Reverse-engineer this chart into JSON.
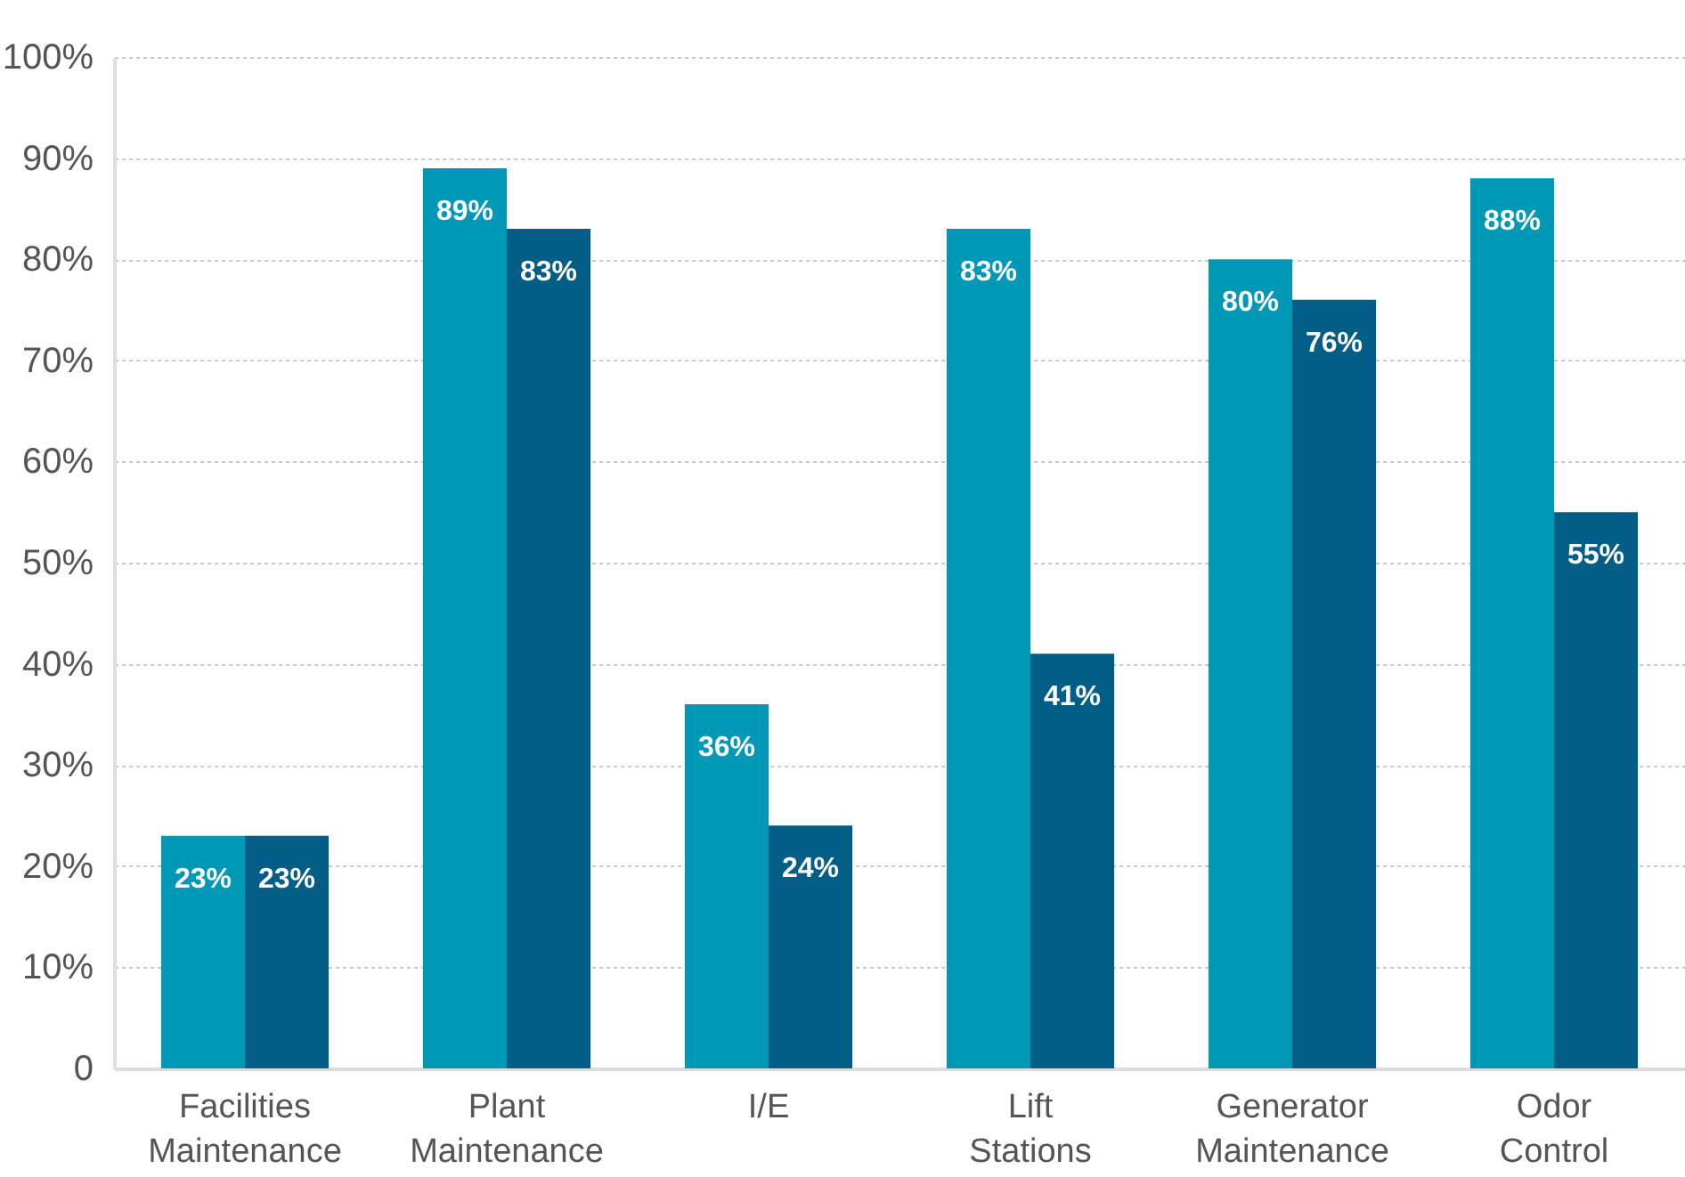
{
  "chart_data": {
    "type": "bar",
    "categories": [
      "Facilities Maintenance",
      "Plant Maintenance",
      "I/E",
      "Lift Stations",
      "Generator Maintenance",
      "Odor Control"
    ],
    "series": [
      {
        "color": "#0098b7",
        "values": [
          23,
          89,
          36,
          83,
          80,
          88
        ],
        "value_labels": [
          "23%",
          "89%",
          "36%",
          "83%",
          "80%",
          "88%"
        ]
      },
      {
        "color": "#035e87",
        "values": [
          23,
          83,
          24,
          41,
          76,
          55
        ],
        "value_labels": [
          "23%",
          "83%",
          "24%",
          "41%",
          "76%",
          "55%"
        ]
      }
    ],
    "ylim": [
      0,
      100
    ],
    "yticks": [
      0,
      {
        "value": 10,
        "label": "10%"
      },
      {
        "value": 20,
        "label": "20%"
      },
      {
        "value": 30,
        "label": "30%"
      },
      {
        "value": 40,
        "label": "40%"
      },
      {
        "value": 50,
        "label": "50%"
      },
      {
        "value": 60,
        "label": "60%"
      },
      {
        "value": 70,
        "label": "70%"
      },
      {
        "value": 80,
        "label": "80%"
      },
      {
        "value": 90,
        "label": "90%"
      },
      {
        "value": 100,
        "label": "100%"
      }
    ],
    "grid": "y",
    "legend": false
  }
}
